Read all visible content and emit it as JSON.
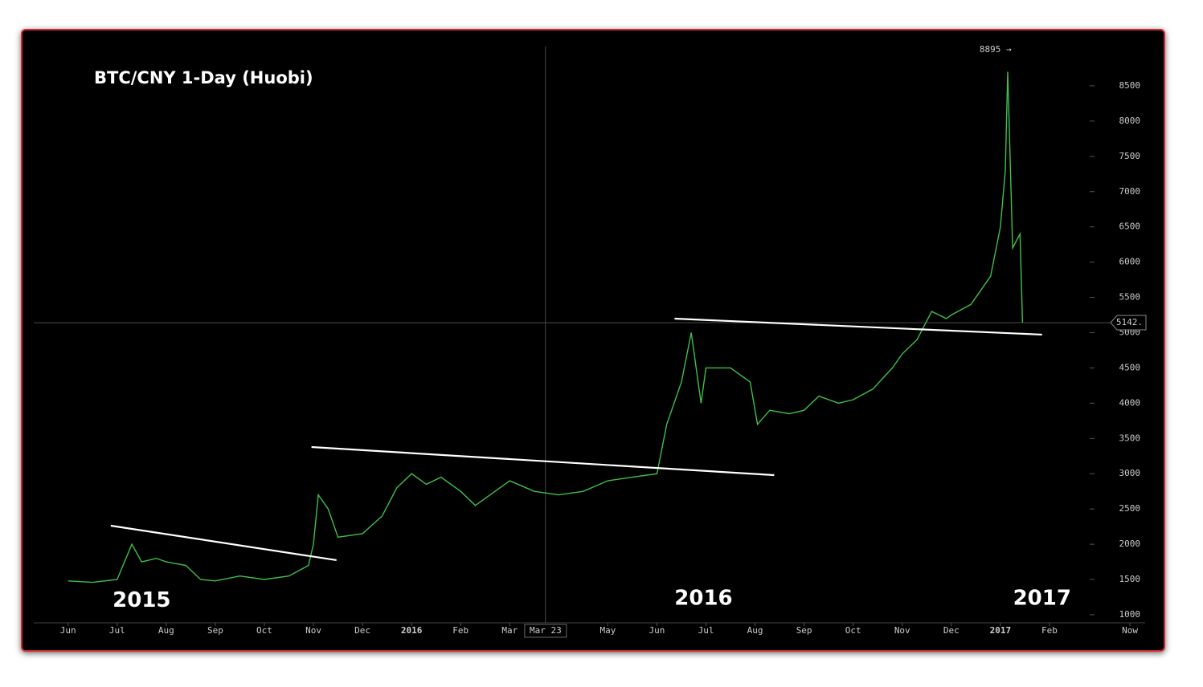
{
  "chart_data": {
    "type": "line",
    "title": "BTC/CNY 1-Day (Huobi)",
    "color": "#3fbf4a",
    "x": [
      0,
      0.5,
      1.0,
      1.3,
      1.5,
      1.8,
      2.0,
      2.4,
      2.7,
      3.0,
      3.5,
      4.0,
      4.5,
      4.9,
      5.0,
      5.1,
      5.3,
      5.5,
      6.0,
      6.4,
      6.7,
      7.0,
      7.3,
      7.6,
      8.0,
      8.3,
      8.7,
      9.0,
      9.5,
      10.0,
      10.5,
      11.0,
      11.5,
      12.0,
      12.2,
      12.5,
      12.7,
      12.9,
      13.0,
      13.5,
      13.9,
      14.05,
      14.3,
      14.7,
      15.0,
      15.3,
      15.7,
      16.0,
      16.4,
      16.8,
      17.0,
      17.3,
      17.6,
      17.9,
      18.0,
      18.4,
      18.8,
      19.0,
      19.1,
      19.15,
      19.25,
      19.4,
      19.45
    ],
    "values": [
      1480,
      1460,
      1500,
      2000,
      1750,
      1800,
      1750,
      1700,
      1500,
      1480,
      1550,
      1500,
      1550,
      1700,
      2000,
      2700,
      2500,
      2100,
      2150,
      2400,
      2800,
      3000,
      2850,
      2950,
      2750,
      2550,
      2750,
      2900,
      2750,
      2700,
      2750,
      2900,
      2950,
      3000,
      3700,
      4300,
      5000,
      4000,
      4500,
      4500,
      4300,
      3700,
      3900,
      3850,
      3900,
      4100,
      4000,
      4050,
      4200,
      4500,
      4700,
      4900,
      5300,
      5200,
      5250,
      5400,
      5800,
      6500,
      7300,
      8700,
      6200,
      6400,
      5142
    ],
    "xlim": [
      -0.7,
      21.95
    ],
    "xticks": [
      {
        "value": 0,
        "label": "Jun"
      },
      {
        "value": 1,
        "label": "Jul"
      },
      {
        "value": 2,
        "label": "Aug"
      },
      {
        "value": 3,
        "label": "Sep"
      },
      {
        "value": 4,
        "label": "Oct"
      },
      {
        "value": 5,
        "label": "Nov"
      },
      {
        "value": 6,
        "label": "Dec"
      },
      {
        "value": 7,
        "label": "2016"
      },
      {
        "value": 8,
        "label": "Feb"
      },
      {
        "value": 9,
        "label": "Mar"
      },
      {
        "value": 11,
        "label": "May"
      },
      {
        "value": 12,
        "label": "Jun"
      },
      {
        "value": 13,
        "label": "Jul"
      },
      {
        "value": 14,
        "label": "Aug"
      },
      {
        "value": 15,
        "label": "Sep"
      },
      {
        "value": 16,
        "label": "Oct"
      },
      {
        "value": 17,
        "label": "Nov"
      },
      {
        "value": 18,
        "label": "Dec"
      },
      {
        "value": 19,
        "label": "2017"
      },
      {
        "value": 20,
        "label": "Feb"
      },
      {
        "value": 21.64,
        "label": "Now"
      }
    ],
    "ylim": [
      886,
      9057
    ],
    "yticks": [
      1000,
      1500,
      2000,
      2500,
      3000,
      3500,
      4000,
      4500,
      5000,
      5500,
      6000,
      6500,
      7000,
      7500,
      8000,
      8500
    ],
    "crosshair": {
      "x": 9.73,
      "x_label": "Mar 23",
      "y": 5142,
      "y_label": "5142."
    },
    "trend_lines": [
      {
        "x": [
          0.87,
          5.47
        ],
        "y": [
          2263,
          1774
        ]
      },
      {
        "x": [
          4.96,
          14.39
        ],
        "y": [
          3378,
          2980
        ]
      },
      {
        "x": [
          12.36,
          19.85
        ],
        "y": [
          5199,
          4972
        ]
      }
    ],
    "annotations": [
      {
        "text": "8895 →",
        "x": 18.9,
        "y": 9010
      },
      {
        "text": "2015",
        "x": 1.5,
        "y": 1200
      },
      {
        "text": "2016",
        "x": 12.95,
        "y": 1225
      },
      {
        "text": "2017",
        "x": 19.85,
        "y": 1225
      }
    ]
  }
}
